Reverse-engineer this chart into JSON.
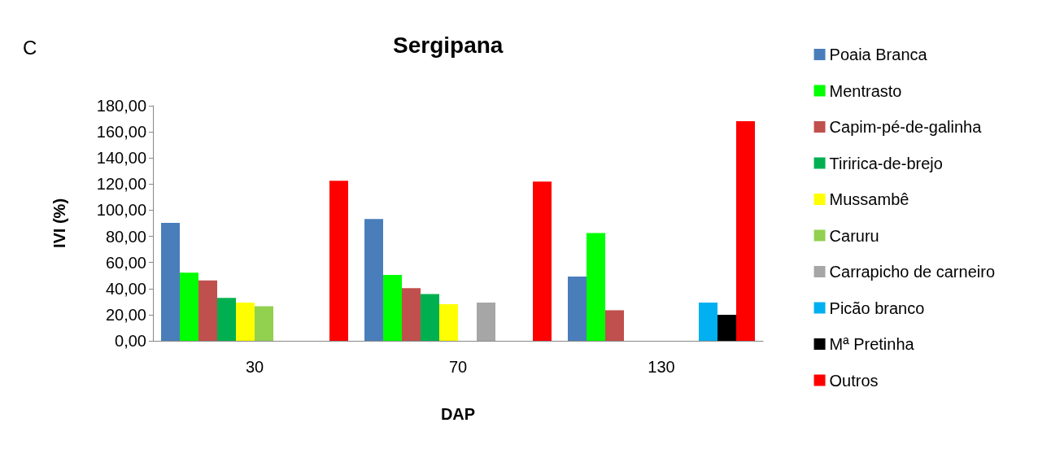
{
  "chart_data": {
    "type": "bar",
    "title": "Sergipana",
    "xlabel": "DAP",
    "ylabel": "IVI (%)",
    "annotations": [
      "C"
    ],
    "categories": [
      "30",
      "70",
      "130"
    ],
    "series": [
      {
        "name": "Poaia Branca",
        "color": "#4a7ebb",
        "values": [
          90.3,
          93.2,
          49.2
        ]
      },
      {
        "name": "Mentrasto",
        "color": "#00ff00",
        "values": [
          52.2,
          50.4,
          82.6
        ]
      },
      {
        "name": "Capim-pé-de-galinha",
        "color": "#c0504d",
        "values": [
          46.3,
          40.4,
          23.4
        ]
      },
      {
        "name": "Tiririca-de-brejo",
        "color": "#00b050",
        "values": [
          32.8,
          35.8,
          null
        ]
      },
      {
        "name": "Mussambê",
        "color": "#ffff00",
        "values": [
          29.3,
          28.1,
          null
        ]
      },
      {
        "name": "Caruru",
        "color": "#92d050",
        "values": [
          26.4,
          null,
          null
        ]
      },
      {
        "name": "Carrapicho de carneiro",
        "color": "#a6a6a6",
        "values": [
          null,
          29.3,
          null
        ]
      },
      {
        "name": "Picão branco",
        "color": "#00b0f0",
        "values": [
          null,
          null,
          29.3
        ]
      },
      {
        "name": "Mª Pretinha",
        "color": "#000000",
        "values": [
          null,
          null,
          19.9
        ]
      },
      {
        "name": "Outros",
        "color": "#ff0000",
        "values": [
          122.5,
          121.9,
          168.2
        ]
      }
    ],
    "ylim": [
      0,
      180
    ],
    "yticks": [
      {
        "value": 0,
        "label": "0,00"
      },
      {
        "value": 20,
        "label": "20,00"
      },
      {
        "value": 40,
        "label": "40,00"
      },
      {
        "value": 60,
        "label": "60,00"
      },
      {
        "value": 80,
        "label": "80,00"
      },
      {
        "value": 100,
        "label": "100,00"
      },
      {
        "value": 120,
        "label": "120,00"
      },
      {
        "value": 140,
        "label": "140,00"
      },
      {
        "value": 160,
        "label": "160,00"
      },
      {
        "value": 180,
        "label": "180,00"
      }
    ],
    "grid": false,
    "legend": "right"
  }
}
